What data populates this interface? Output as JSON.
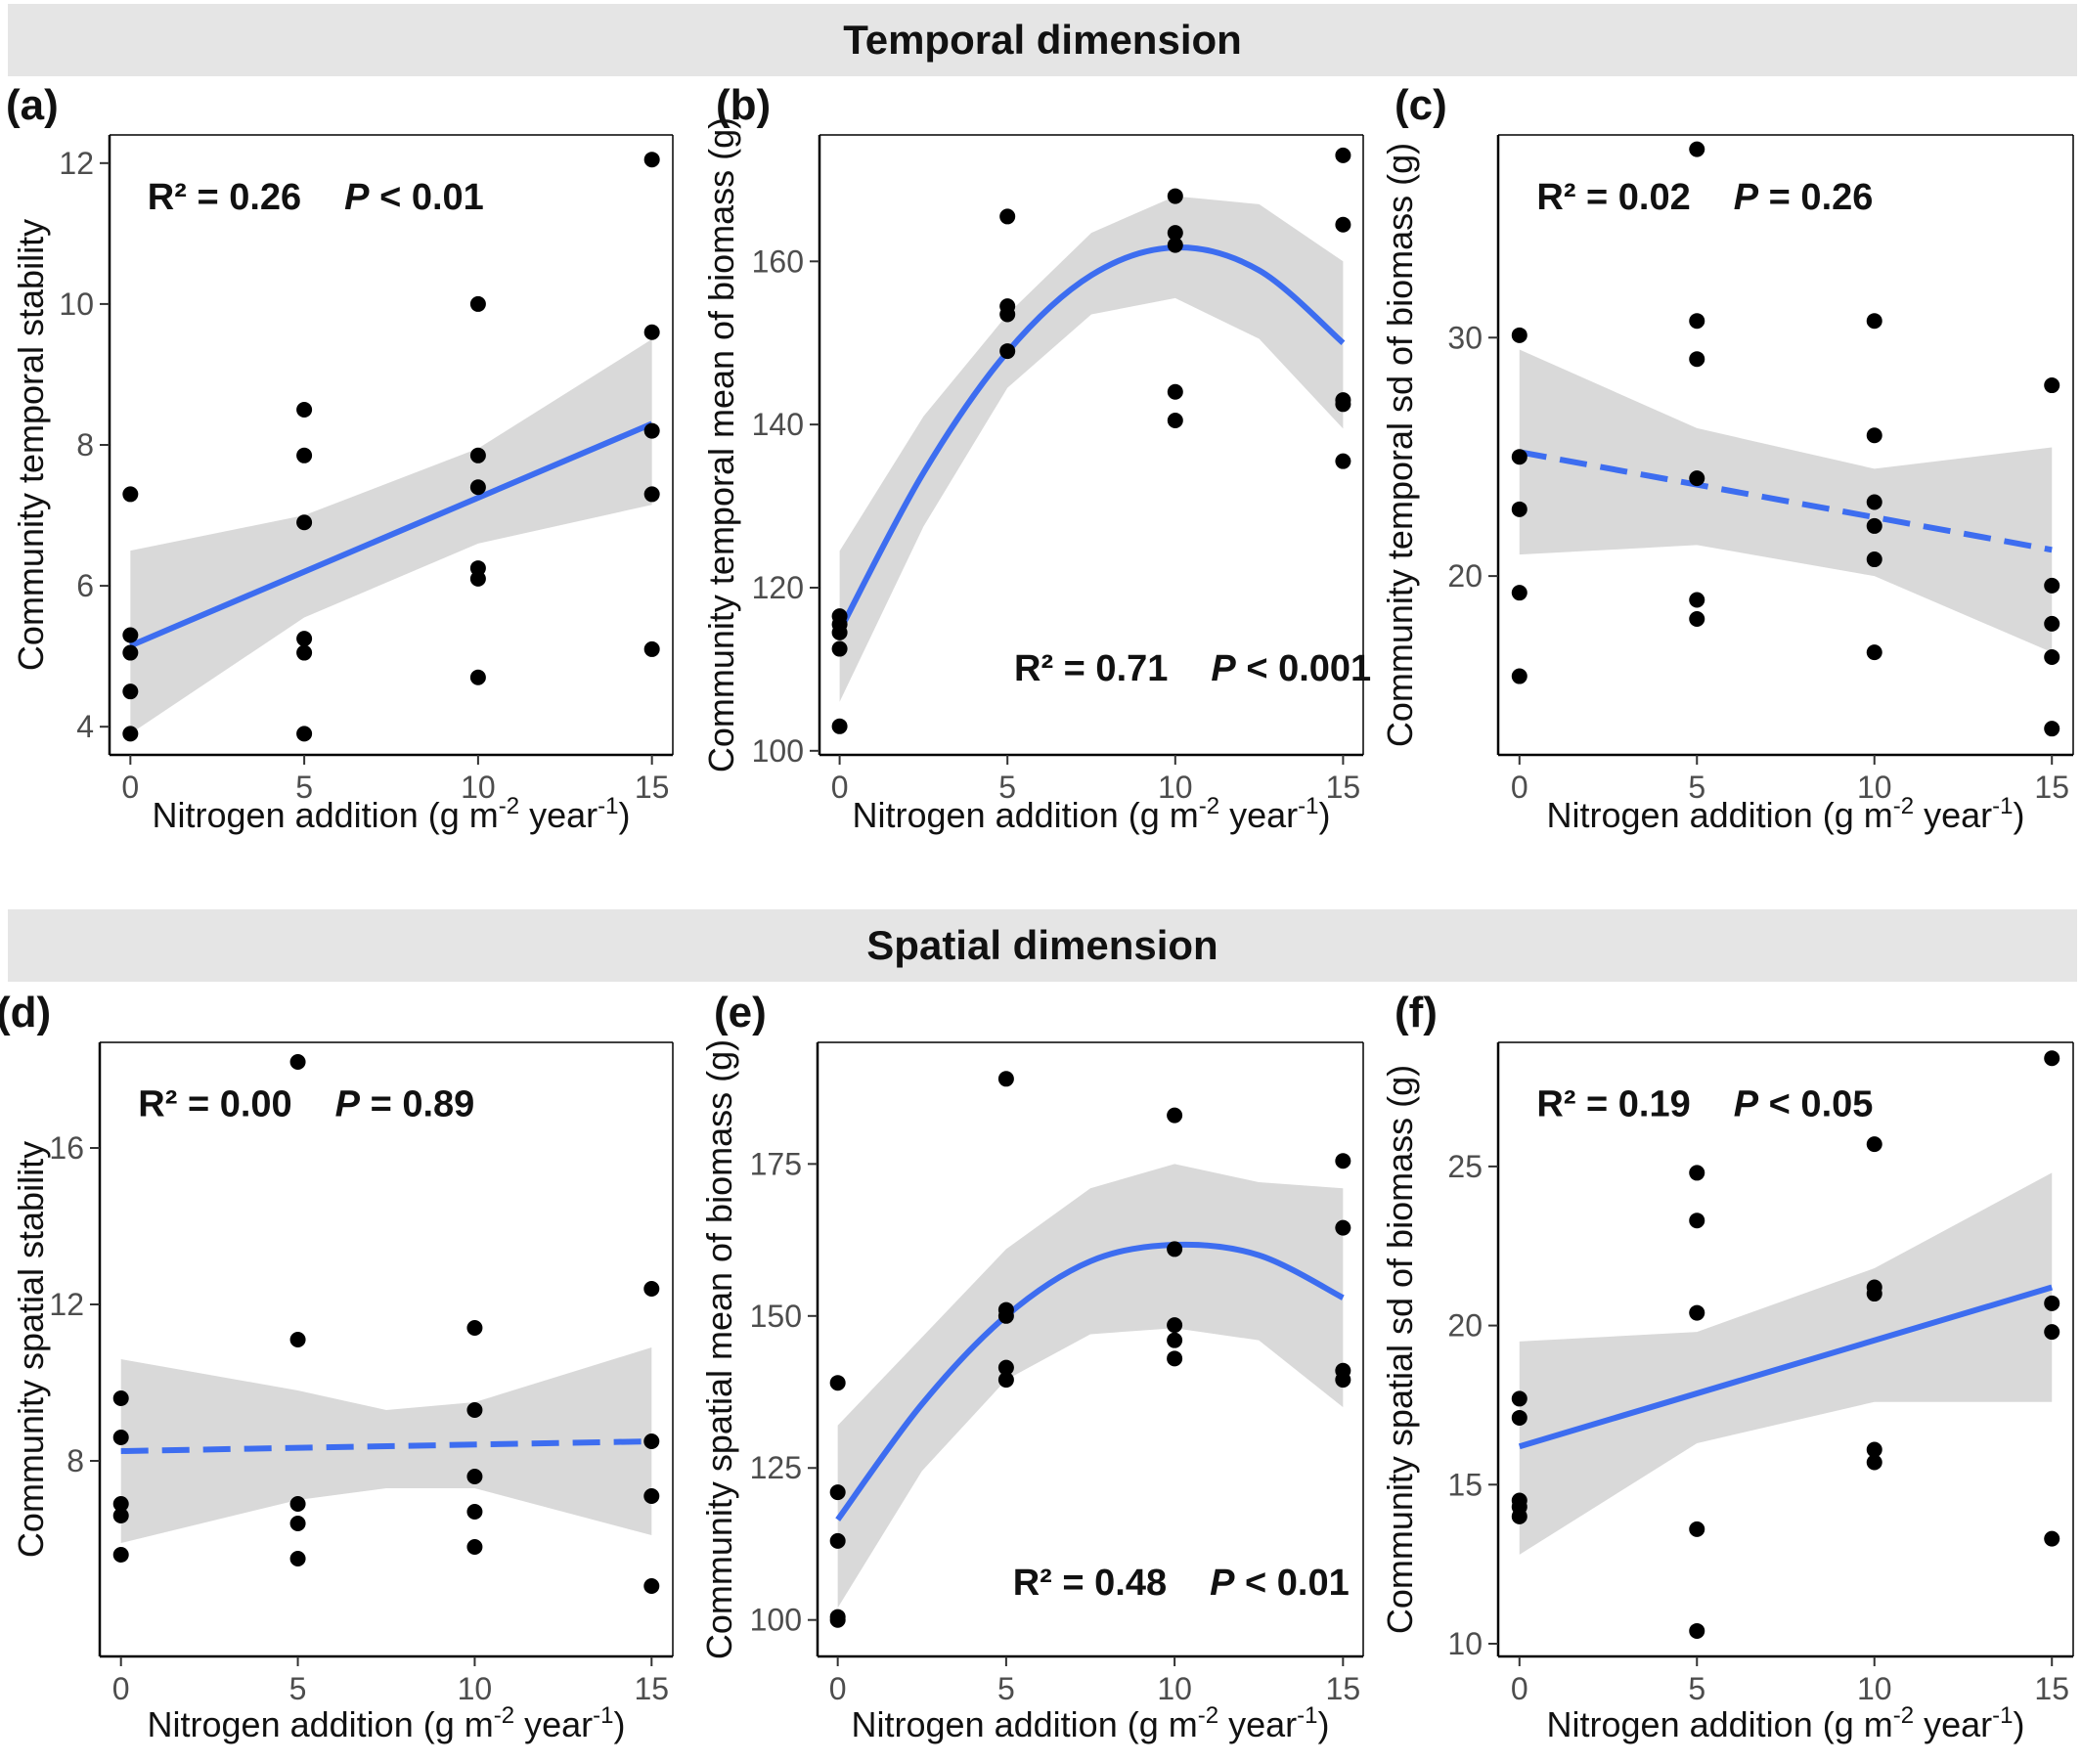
{
  "strips": {
    "temporal": "Temporal dimension",
    "spatial": "Spatial dimension"
  },
  "colors": {
    "fit_line": "#3d6df0",
    "ci_band": "#d9d9d9",
    "points": "#000000",
    "strip": "#e5e5e5"
  },
  "chart_data": [
    {
      "type": "scatter",
      "panel": "(a)",
      "xlabel": "Nitrogen addition (g m-2 year-1)",
      "ylabel": "Community temporal stability",
      "x_ticks": [
        0,
        5,
        10,
        15
      ],
      "y_ticks": [
        4,
        6,
        8,
        10,
        12
      ],
      "xlim": [
        -0.6,
        15.6
      ],
      "ylim": [
        3.6,
        12.4
      ],
      "stats": {
        "r2": "R² = 0.26",
        "p": "P < 0.01"
      },
      "fit": {
        "type": "linear",
        "dashed": false,
        "line": [
          [
            0,
            5.15
          ],
          [
            15,
            8.3
          ]
        ],
        "ci_upper": [
          [
            0,
            6.5
          ],
          [
            5,
            7.0
          ],
          [
            10,
            7.95
          ],
          [
            15,
            9.5
          ]
        ],
        "ci_lower": [
          [
            0,
            3.9
          ],
          [
            5,
            5.55
          ],
          [
            10,
            6.6
          ],
          [
            15,
            7.15
          ]
        ]
      },
      "points": [
        [
          0,
          7.3
        ],
        [
          0,
          5.3
        ],
        [
          0,
          5.05
        ],
        [
          0,
          4.5
        ],
        [
          0,
          3.9
        ],
        [
          5,
          8.5
        ],
        [
          5,
          7.85
        ],
        [
          5,
          6.9
        ],
        [
          5,
          5.25
        ],
        [
          5,
          5.05
        ],
        [
          5,
          3.9
        ],
        [
          10,
          10.0
        ],
        [
          10,
          7.85
        ],
        [
          10,
          7.4
        ],
        [
          10,
          6.25
        ],
        [
          10,
          6.1
        ],
        [
          10,
          4.7
        ],
        [
          15,
          12.05
        ],
        [
          15,
          9.6
        ],
        [
          15,
          8.2
        ],
        [
          15,
          7.3
        ],
        [
          15,
          5.1
        ]
      ]
    },
    {
      "type": "scatter",
      "panel": "(b)",
      "xlabel": "Nitrogen addition (g m-2 year-1)",
      "ylabel": "Community temporal mean of biomass (g)",
      "x_ticks": [
        0,
        5,
        10,
        15
      ],
      "y_ticks": [
        100,
        120,
        140,
        160
      ],
      "xlim": [
        -0.6,
        15.6
      ],
      "ylim": [
        99.5,
        175.5
      ],
      "stats": {
        "r2": "R² = 0.71",
        "p": "P < 0.001"
      },
      "fit": {
        "type": "quadratic",
        "dashed": false,
        "line": [
          [
            0,
            114.7
          ],
          [
            2.5,
            134.1
          ],
          [
            5,
            148.9
          ],
          [
            7.5,
            158.3
          ],
          [
            10,
            161.7
          ],
          [
            12.5,
            158.9
          ],
          [
            15,
            150.0
          ]
        ],
        "ci_upper": [
          [
            0,
            124.5
          ],
          [
            2.5,
            141.0
          ],
          [
            5,
            153.5
          ],
          [
            7.5,
            163.5
          ],
          [
            10,
            168.0
          ],
          [
            12.5,
            167.0
          ],
          [
            15,
            160.0
          ]
        ],
        "ci_lower": [
          [
            0,
            106.0
          ],
          [
            2.5,
            127.5
          ],
          [
            5,
            144.5
          ],
          [
            7.5,
            153.5
          ],
          [
            10,
            155.5
          ],
          [
            12.5,
            150.5
          ],
          [
            15,
            139.5
          ]
        ]
      },
      "points": [
        [
          0,
          116.5
        ],
        [
          0,
          115.5
        ],
        [
          0,
          114.5
        ],
        [
          0,
          112.5
        ],
        [
          0,
          103.0
        ],
        [
          5,
          165.5
        ],
        [
          5,
          154.5
        ],
        [
          5,
          153.5
        ],
        [
          5,
          149.0
        ],
        [
          10,
          168.0
        ],
        [
          10,
          163.5
        ],
        [
          10,
          162.0
        ],
        [
          10,
          144.0
        ],
        [
          10,
          140.5
        ],
        [
          15,
          173.0
        ],
        [
          15,
          164.5
        ],
        [
          15,
          143.0
        ],
        [
          15,
          142.5
        ],
        [
          15,
          135.5
        ]
      ]
    },
    {
      "type": "scatter",
      "panel": "(c)",
      "xlabel": "Nitrogen addition (g m-2 year-1)",
      "ylabel": "Community temporal sd of biomass (g)",
      "x_ticks": [
        0,
        5,
        10,
        15
      ],
      "y_ticks": [
        20,
        30
      ],
      "xlim": [
        -0.6,
        15.6
      ],
      "ylim": [
        12.5,
        38.5
      ],
      "stats": {
        "r2": "R² = 0.02",
        "p": "P = 0.26"
      },
      "fit": {
        "type": "linear",
        "dashed": true,
        "line": [
          [
            0,
            25.2
          ],
          [
            15,
            21.1
          ]
        ],
        "ci_upper": [
          [
            0,
            29.5
          ],
          [
            5,
            26.2
          ],
          [
            10,
            24.5
          ],
          [
            15,
            25.4
          ]
        ],
        "ci_lower": [
          [
            0,
            20.9
          ],
          [
            5,
            21.3
          ],
          [
            10,
            20.0
          ],
          [
            15,
            16.8
          ]
        ]
      },
      "points": [
        [
          0,
          30.1
        ],
        [
          0,
          25.0
        ],
        [
          0,
          22.8
        ],
        [
          0,
          19.3
        ],
        [
          0,
          15.8
        ],
        [
          5,
          37.9
        ],
        [
          5,
          30.7
        ],
        [
          5,
          29.1
        ],
        [
          5,
          24.1
        ],
        [
          5,
          19.0
        ],
        [
          5,
          18.2
        ],
        [
          10,
          30.7
        ],
        [
          10,
          25.9
        ],
        [
          10,
          23.1
        ],
        [
          10,
          22.1
        ],
        [
          10,
          20.7
        ],
        [
          10,
          16.8
        ],
        [
          15,
          28.0
        ],
        [
          15,
          19.6
        ],
        [
          15,
          18.0
        ],
        [
          15,
          16.6
        ],
        [
          15,
          13.6
        ]
      ]
    },
    {
      "type": "scatter",
      "panel": "(d)",
      "xlabel": "Nitrogen addition (g m-2 year-1)",
      "ylabel": "Community spatial stability",
      "x_ticks": [
        0,
        5,
        10,
        15
      ],
      "y_ticks": [
        8,
        12,
        16
      ],
      "xlim": [
        -0.6,
        15.6
      ],
      "ylim": [
        3.0,
        18.7
      ],
      "stats": {
        "r2": "R² = 0.00",
        "p": "P = 0.89"
      },
      "fit": {
        "type": "linear",
        "dashed": true,
        "line": [
          [
            0,
            8.25
          ],
          [
            15,
            8.5
          ]
        ],
        "ci_upper": [
          [
            0,
            10.6
          ],
          [
            5,
            9.8
          ],
          [
            7.5,
            9.3
          ],
          [
            10,
            9.5
          ],
          [
            15,
            10.9
          ]
        ],
        "ci_lower": [
          [
            0,
            5.9
          ],
          [
            5,
            7.0
          ],
          [
            7.5,
            7.3
          ],
          [
            10,
            7.3
          ],
          [
            15,
            6.1
          ]
        ]
      },
      "points": [
        [
          0,
          9.6
        ],
        [
          0,
          8.6
        ],
        [
          0,
          6.9
        ],
        [
          0,
          6.6
        ],
        [
          0,
          5.6
        ],
        [
          5,
          18.2
        ],
        [
          5,
          11.1
        ],
        [
          5,
          6.9
        ],
        [
          5,
          6.4
        ],
        [
          5,
          5.5
        ],
        [
          10,
          11.4
        ],
        [
          10,
          9.3
        ],
        [
          10,
          7.6
        ],
        [
          10,
          6.7
        ],
        [
          10,
          5.8
        ],
        [
          15,
          12.4
        ],
        [
          15,
          8.5
        ],
        [
          15,
          7.1
        ],
        [
          15,
          4.8
        ]
      ]
    },
    {
      "type": "scatter",
      "panel": "(e)",
      "xlabel": "Nitrogen addition (g m-2 year-1)",
      "ylabel": "Community spatial mean of biomass (g)",
      "x_ticks": [
        0,
        5,
        10,
        15
      ],
      "y_ticks": [
        100,
        125,
        150,
        175
      ],
      "xlim": [
        -0.6,
        15.6
      ],
      "ylim": [
        94.0,
        195.0
      ],
      "stats": {
        "r2": "R² = 0.48",
        "p": "P < 0.01"
      },
      "fit": {
        "type": "quadratic",
        "dashed": false,
        "line": [
          [
            0,
            116.5
          ],
          [
            2.5,
            135.5
          ],
          [
            5,
            150.0
          ],
          [
            7.5,
            159.0
          ],
          [
            10,
            161.7
          ],
          [
            12.5,
            160.0
          ],
          [
            15,
            153.0
          ]
        ],
        "ci_upper": [
          [
            0,
            132.0
          ],
          [
            2.5,
            146.5
          ],
          [
            5,
            161.0
          ],
          [
            7.5,
            171.0
          ],
          [
            10,
            175.0
          ],
          [
            12.5,
            172.0
          ],
          [
            15,
            171.0
          ]
        ],
        "ci_lower": [
          [
            0,
            102.0
          ],
          [
            2.5,
            124.5
          ],
          [
            5,
            139.5
          ],
          [
            7.5,
            147.0
          ],
          [
            10,
            148.0
          ],
          [
            12.5,
            146.0
          ],
          [
            15,
            135.0
          ]
        ]
      },
      "points": [
        [
          0,
          139.0
        ],
        [
          0,
          121.0
        ],
        [
          0,
          113.0
        ],
        [
          0,
          100.5
        ],
        [
          0,
          100.0
        ],
        [
          5,
          189.0
        ],
        [
          5,
          151.0
        ],
        [
          5,
          150.0
        ],
        [
          5,
          141.5
        ],
        [
          5,
          139.5
        ],
        [
          10,
          183.0
        ],
        [
          10,
          161.0
        ],
        [
          10,
          148.5
        ],
        [
          10,
          146.0
        ],
        [
          10,
          143.0
        ],
        [
          15,
          175.5
        ],
        [
          15,
          164.5
        ],
        [
          15,
          141.0
        ],
        [
          15,
          139.5
        ]
      ]
    },
    {
      "type": "scatter",
      "panel": "(f)",
      "xlabel": "Nitrogen addition (g m-2 year-1)",
      "ylabel": "Community spatial sd of biomass (g)",
      "x_ticks": [
        0,
        5,
        10,
        15
      ],
      "y_ticks": [
        10,
        15,
        20,
        25
      ],
      "xlim": [
        -0.6,
        15.6
      ],
      "ylim": [
        9.6,
        28.9
      ],
      "stats": {
        "r2": "R² = 0.19",
        "p": "P < 0.05"
      },
      "fit": {
        "type": "linear",
        "dashed": false,
        "line": [
          [
            0,
            16.2
          ],
          [
            15,
            21.2
          ]
        ],
        "ci_upper": [
          [
            0,
            19.5
          ],
          [
            5,
            19.8
          ],
          [
            10,
            21.8
          ],
          [
            15,
            24.8
          ]
        ],
        "ci_lower": [
          [
            0,
            12.8
          ],
          [
            5,
            16.3
          ],
          [
            10,
            17.6
          ],
          [
            15,
            17.6
          ]
        ]
      },
      "points": [
        [
          0,
          17.7
        ],
        [
          0,
          17.1
        ],
        [
          0,
          14.5
        ],
        [
          0,
          14.3
        ],
        [
          0,
          14.0
        ],
        [
          5,
          24.8
        ],
        [
          5,
          23.3
        ],
        [
          5,
          20.4
        ],
        [
          5,
          13.6
        ],
        [
          5,
          10.4
        ],
        [
          10,
          25.7
        ],
        [
          10,
          21.2
        ],
        [
          10,
          21.0
        ],
        [
          10,
          16.1
        ],
        [
          10,
          15.7
        ],
        [
          15,
          28.4
        ],
        [
          15,
          20.7
        ],
        [
          15,
          19.8
        ],
        [
          15,
          13.3
        ]
      ]
    }
  ]
}
